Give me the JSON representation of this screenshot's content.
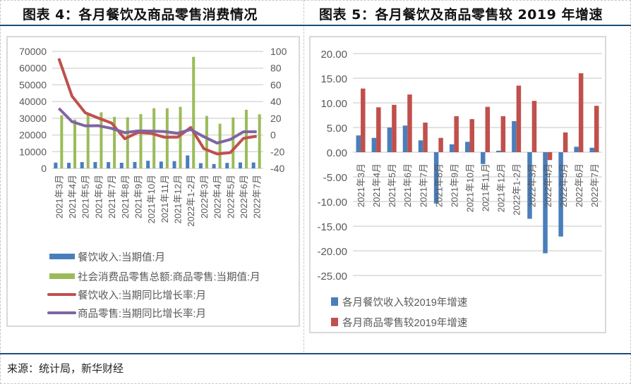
{
  "left_figure": {
    "title": "图表 4：各月餐饮及商品零售消费情况"
  },
  "right_figure": {
    "title": "图表 5：各月餐饮及商品零售较 2019 年增速"
  },
  "source": "来源：统计局，新华财经",
  "colors": {
    "blue": "#4a7ebb",
    "green": "#9bbb59",
    "red": "#c0504d",
    "purple": "#8064a2",
    "rule": "#1f4e79",
    "grid": "#d9d9d9",
    "axis_text": "#595959"
  },
  "chart_data": [
    {
      "type": "bar+line",
      "title": "图表 4：各月餐饮及商品零售消费情况",
      "categories": [
        "2021年3月",
        "2021年4月",
        "2021年5月",
        "2021年6月",
        "2021年7月",
        "2021年8月",
        "2021年9月",
        "2021年10月",
        "2021年11月",
        "2021年12月",
        "2022年1-2月",
        "2022年3月",
        "2022年4月",
        "2022年5月",
        "2022年6月",
        "2022年7月"
      ],
      "left_axis": {
        "ticks": [
          "0",
          "10000",
          "20000",
          "30000",
          "40000",
          "50000",
          "60000",
          "70000"
        ],
        "ylim": [
          0,
          70000
        ]
      },
      "right_axis": {
        "ticks": [
          "-40",
          "-20",
          "0",
          "20",
          "40",
          "60",
          "80",
          "100"
        ],
        "ylim": [
          -40,
          100
        ]
      },
      "series": [
        {
          "name": "餐饮收入:当期值:月",
          "type": "bar",
          "axis": "left",
          "color": "#4a7ebb",
          "values": [
            3450,
            3350,
            3780,
            3800,
            3770,
            3370,
            3840,
            4560,
            4090,
            4350,
            7770,
            3130,
            2610,
            3280,
            3580,
            3540
          ]
        },
        {
          "name": "社会消费品零售总额:商品零售:当期值:月",
          "type": "bar",
          "axis": "left",
          "color": "#9bbb59",
          "values": [
            31780,
            29230,
            32170,
            33540,
            30860,
            30560,
            32470,
            36000,
            36000,
            36850,
            66760,
            31380,
            26740,
            30530,
            35100,
            32370
          ]
        },
        {
          "name": "餐饮收入:当期同比增长率:月",
          "type": "line",
          "axis": "right",
          "color": "#c0504d",
          "values": [
            91.6,
            46.4,
            26.6,
            20.2,
            14.3,
            -4.5,
            3.1,
            2.0,
            -2.7,
            -2.6,
            8.9,
            -16.4,
            -22.7,
            -21.1,
            -4.0,
            -1.5
          ]
        },
        {
          "name": "商品零售:当期同比增长率:月",
          "type": "line",
          "axis": "right",
          "color": "#8064a2",
          "values": [
            31.9,
            15.9,
            10.9,
            11.1,
            7.9,
            2.8,
            4.8,
            4.6,
            4.1,
            2.1,
            6.5,
            -2.1,
            -9.7,
            -5.4,
            3.9,
            3.9
          ]
        }
      ],
      "legend_position": "bottom",
      "grid": true
    },
    {
      "type": "bar",
      "title": "图表 5：各月餐饮及商品零售较 2019 年增速",
      "categories": [
        "2021年3月",
        "2021年4月",
        "2021年5月",
        "2021年6月",
        "2021年7月",
        "2021年8月",
        "2021年9月",
        "2021年10月",
        "2021年11月",
        "2021年12月",
        "2022年1-2月",
        "2022年3月",
        "2022年4月",
        "2022年5月",
        "2022年6月",
        "2022年7月"
      ],
      "y_axis": {
        "ticks": [
          "20.00",
          "15.00",
          "10.00",
          "5.00",
          "0.00",
          "-5.00",
          "-10.00",
          "-15.00",
          "-20.00",
          "-25.00"
        ],
        "ylim": [
          -25,
          20
        ]
      },
      "series": [
        {
          "name": "各月餐饮收入较2019年增速",
          "color": "#4a7ebb",
          "values": [
            3.4,
            2.9,
            5.0,
            5.4,
            2.4,
            -10.4,
            1.6,
            2.1,
            -2.4,
            0.3,
            6.3,
            -13.5,
            -20.5,
            -17.1,
            1.1,
            0.9
          ]
        },
        {
          "name": "各月商品零售较2019年增速",
          "color": "#c0504d",
          "values": [
            12.9,
            9.1,
            9.6,
            11.7,
            6.0,
            2.9,
            7.3,
            6.7,
            9.2,
            7.3,
            13.5,
            10.4,
            -1.6,
            4.0,
            16.0,
            9.4
          ]
        }
      ],
      "legend_position": "bottom",
      "grid": true
    }
  ]
}
